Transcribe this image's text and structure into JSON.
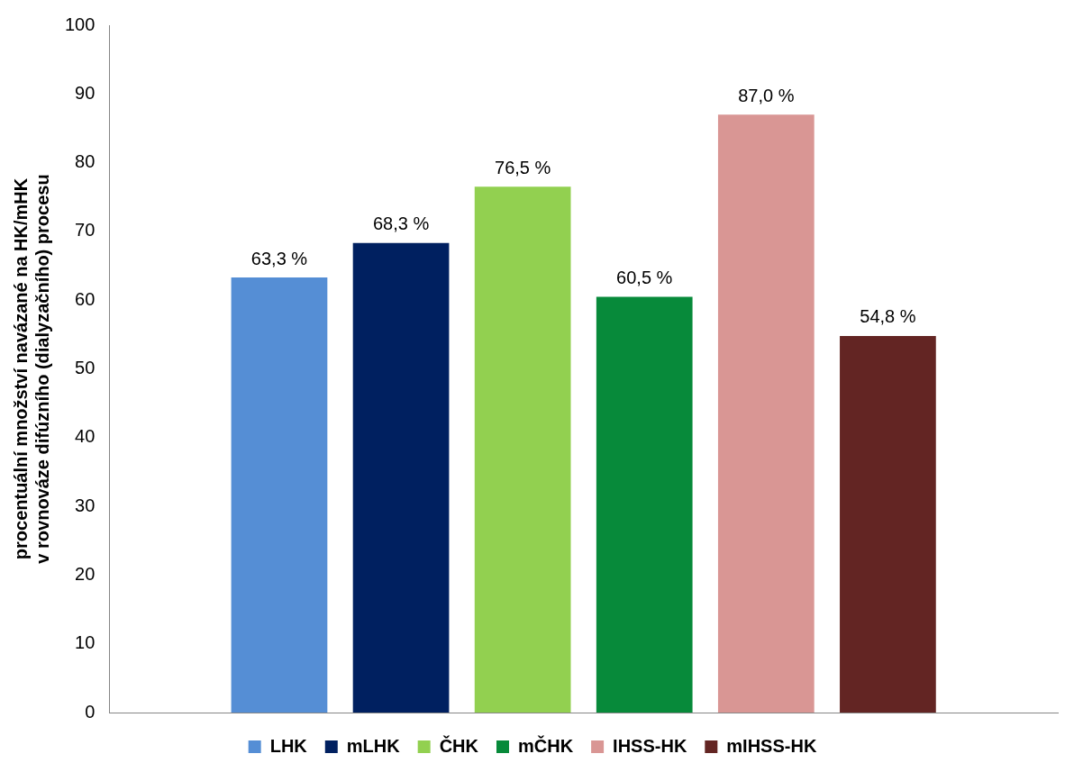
{
  "chart_data": {
    "type": "bar",
    "ylabel": "procentuální množství navázané na HK/mHK\nv rovnováze difúzního (dialyzačního) procesu",
    "categories": [
      null
    ],
    "series": [
      {
        "name": "LHK",
        "color": "#558ed5",
        "values": [
          63.3
        ],
        "value_labels": [
          "63,3 %"
        ]
      },
      {
        "name": "mLHK",
        "color": "#002060",
        "values": [
          68.3
        ],
        "value_labels": [
          "68,3 %"
        ]
      },
      {
        "name": "ČHK",
        "color": "#92d050",
        "values": [
          76.5
        ],
        "value_labels": [
          "76,5 %"
        ]
      },
      {
        "name": "mČHK",
        "color": "#078a3a",
        "values": [
          60.5
        ],
        "value_labels": [
          "60,5 %"
        ]
      },
      {
        "name": "IHSS-HK",
        "color": "#d99694",
        "values": [
          87.0
        ],
        "value_labels": [
          "87,0 %"
        ]
      },
      {
        "name": "mIHSS-HK",
        "color": "#632523",
        "values": [
          54.8
        ],
        "value_labels": [
          "54,8 %"
        ]
      }
    ],
    "ylim": [
      0,
      100
    ],
    "yticks": [
      0,
      10,
      20,
      30,
      40,
      50,
      60,
      70,
      80,
      90,
      100
    ],
    "grid": false,
    "legend": "bottom"
  }
}
